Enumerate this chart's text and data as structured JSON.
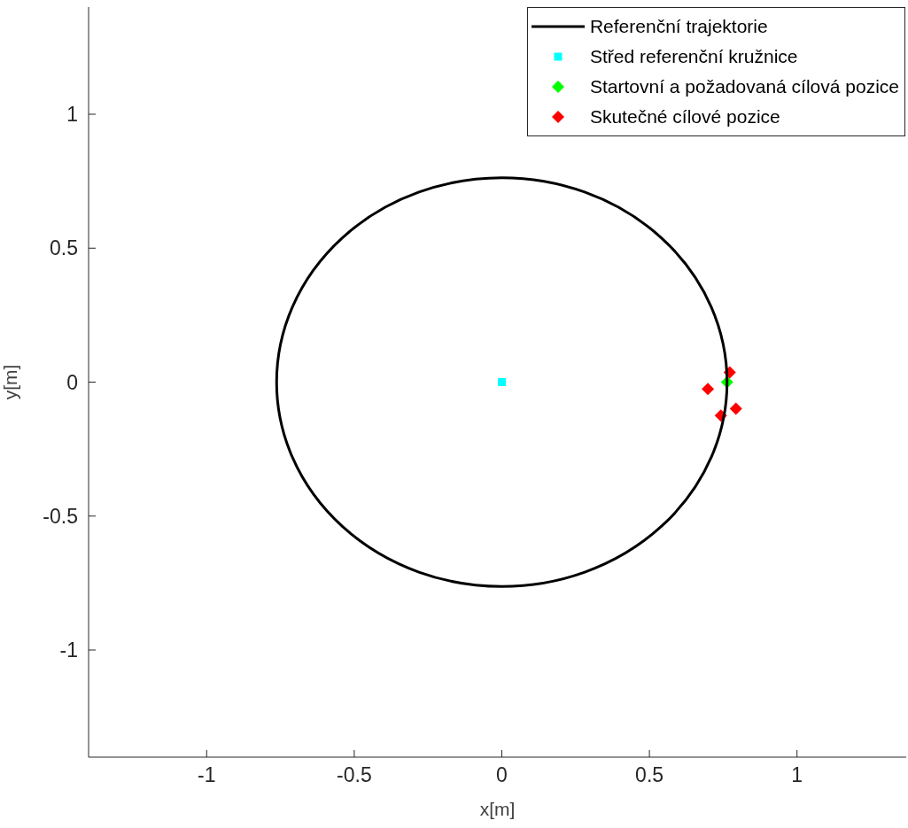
{
  "chart_data": {
    "type": "scatter",
    "xlabel": "x[m]",
    "ylabel": "y[m]",
    "xlim": [
      -1.4,
      1.37
    ],
    "ylim": [
      -1.4,
      1.4
    ],
    "xticks": [
      -1,
      -0.5,
      0,
      0.5,
      1
    ],
    "yticks": [
      -1,
      -0.5,
      0,
      0.5,
      1
    ],
    "grid": false,
    "legend": "top right",
    "series": [
      {
        "name": "Referenční trajektorie",
        "type": "line",
        "color": "#000000"
      },
      {
        "name": "Střed referenční kružnice",
        "type": "scatter",
        "marker": "square",
        "color": "#00ffff",
        "x": [
          0
        ],
        "values": [
          0
        ]
      },
      {
        "name": "Startovní a požadovaná cílová pozice",
        "type": "scatter",
        "marker": "diamond",
        "color": "#00ff00",
        "x": [
          0.763
        ],
        "values": [
          0
        ]
      },
      {
        "name": "Skutečné cílové pozice",
        "type": "scatter",
        "marker": "diamond",
        "color": "#ff0000",
        "x": [
          0.772,
          0.698,
          0.742,
          0.793
        ],
        "values": [
          0.036,
          -0.026,
          -0.125,
          -0.099
        ]
      }
    ]
  }
}
